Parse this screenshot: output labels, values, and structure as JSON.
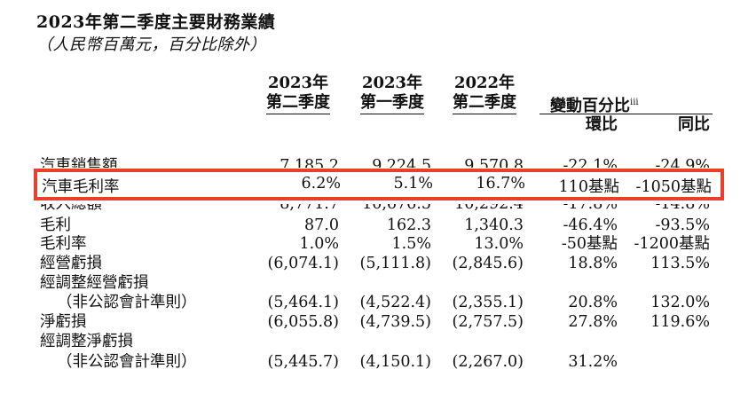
{
  "title": "2023年第二季度主要財務業績",
  "subtitle": "（人民幣百萬元，百分比除外）",
  "columns": {
    "c1": {
      "year": "2023年",
      "quarter": "第二季度"
    },
    "c2": {
      "year": "2023年",
      "quarter": "第一季度"
    },
    "c3": {
      "year": "2022年",
      "quarter": "第二季度"
    },
    "change_header": "變動百分比",
    "change_sup": "iii",
    "qoq": "環比",
    "yoy": "同比"
  },
  "rows": [
    {
      "label": "汽車銷售額",
      "v": [
        "7,185.2",
        "9,224.5",
        "9,570.8",
        "-22.1%",
        "-24.9%"
      ]
    },
    {
      "label": "收入總額",
      "v": [
        "8,771.7",
        "10,676.5",
        "10,292.4",
        "-17.8%",
        "-14.8%"
      ]
    },
    {
      "label": "毛利",
      "v": [
        "87.0",
        "162.3",
        "1,340.3",
        "-46.4%",
        "-93.5%"
      ]
    },
    {
      "label": "毛利率",
      "v": [
        "1.0%",
        "1.5%",
        "13.0%",
        "-50基點",
        "-1200基點"
      ]
    },
    {
      "label": "經營虧損",
      "v": [
        "(6,074.1)",
        "(5,111.8)",
        "(2,845.6)",
        "18.8%",
        "113.5%"
      ]
    },
    {
      "label": "經調整經營虧損",
      "v": [
        "",
        "",
        "",
        "",
        ""
      ]
    },
    {
      "label": "（非公認會計準則）",
      "v": [
        "(5,464.1)",
        "(4,522.4)",
        "(2,355.1)",
        "20.8%",
        "132.0%"
      ]
    },
    {
      "label": "淨虧損",
      "v": [
        "(6,055.8)",
        "(4,739.5)",
        "(2,757.5)",
        "27.8%",
        "119.6%"
      ]
    },
    {
      "label": "經調整淨虧損",
      "v": [
        "",
        "",
        "",
        "",
        ""
      ]
    },
    {
      "label": "（非公認會計準則）",
      "v": [
        "(5,445.7)",
        "(4,150.1)",
        "(2,267.0)",
        "31.2%",
        ""
      ]
    }
  ],
  "highlight": {
    "label": "汽車毛利率",
    "v": [
      "6.2%",
      "5.1%",
      "16.7%",
      "110基點",
      "-1050基點"
    ],
    "border_color": "#e8402c"
  }
}
